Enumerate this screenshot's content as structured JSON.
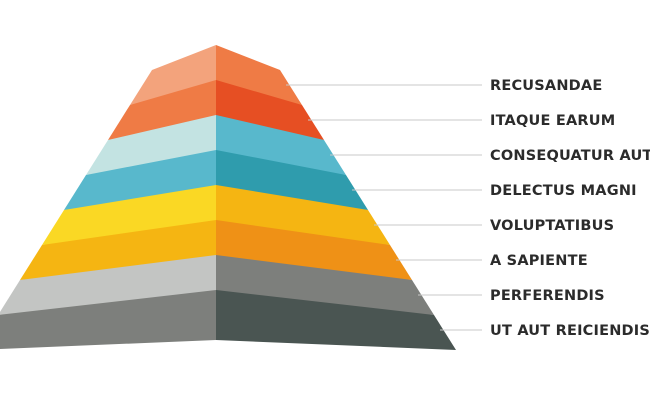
{
  "diagram": {
    "type": "pyramid",
    "tiers": [
      {
        "label": "RECUSANDAE",
        "colors": {
          "left": "#f3a37c",
          "right": "#ef7b45",
          "top": "#ef7b45"
        }
      },
      {
        "label": "ITAQUE EARUM",
        "colors": {
          "left": "#ef7b45",
          "right": "#e64f23",
          "top": "#e64f23"
        }
      },
      {
        "label": "CONSEQUATUR AUT",
        "colors": {
          "left": "#c3e3e2",
          "right": "#58b8cc",
          "top": "#58b8cc"
        }
      },
      {
        "label": "DELECTUS MAGNI",
        "colors": {
          "left": "#58b8cc",
          "right": "#2f9cad",
          "top": "#2f9cad"
        }
      },
      {
        "label": "VOLUPTATIBUS",
        "colors": {
          "left": "#fad824",
          "right": "#f5b512",
          "top": "#f5b512"
        }
      },
      {
        "label": "A SAPIENTE",
        "colors": {
          "left": "#f5b512",
          "right": "#ef9116",
          "top": "#ef9116"
        }
      },
      {
        "label": "PERFERENDIS",
        "colors": {
          "left": "#c3c5c3",
          "right": "#7d7f7c",
          "top": "#7d7f7c"
        }
      },
      {
        "label": "UT AUT REICIENDIS",
        "colors": {
          "left": "#7d7f7c",
          "right": "#4a5552",
          "top": "#4a5552"
        }
      }
    ],
    "connector_color": "#c9c9c9",
    "label_color": "#2b2b2b"
  }
}
